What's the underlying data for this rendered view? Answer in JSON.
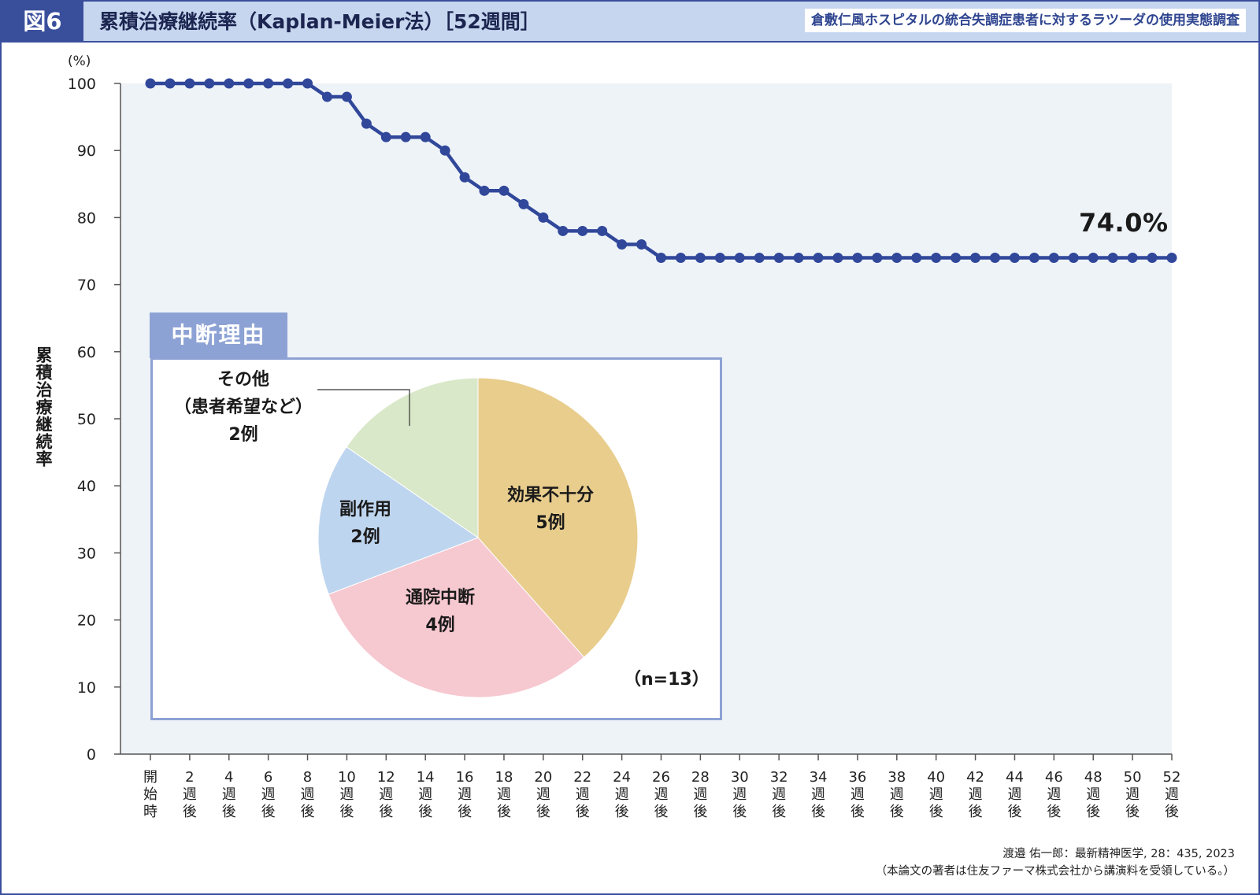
{
  "header": {
    "figure_label": "図6",
    "title": "累積治療継続率（Kaplan-Meier法）［52週間］",
    "subtitle": "倉敷仁風ホスピタルの統合失調症患者に対するラツーダの使用実態調査"
  },
  "colors": {
    "frame": "#3a4f9c",
    "header_bg": "#c6d6ef",
    "plot_bg": "#eef3f8",
    "line": "#30479a",
    "pie_frame": "#8da2d4"
  },
  "chart_data": [
    {
      "type": "line",
      "ylabel": "累積治療継続率",
      "yunit": "(%)",
      "ylim": [
        0,
        100
      ],
      "yticks": [
        0,
        10,
        20,
        30,
        40,
        50,
        60,
        70,
        80,
        90,
        100
      ],
      "x": [
        0,
        1,
        2,
        3,
        4,
        5,
        6,
        7,
        8,
        9,
        10,
        11,
        12,
        13,
        14,
        15,
        16,
        17,
        18,
        19,
        20,
        21,
        22,
        23,
        24,
        25,
        26,
        27,
        28,
        29,
        30,
        31,
        32,
        33,
        34,
        35,
        36,
        37,
        38,
        39,
        40,
        41,
        42,
        43,
        44,
        45,
        46,
        47,
        48,
        49,
        50,
        51,
        52
      ],
      "xticks": [
        {
          "week": 0,
          "label": "開始時"
        },
        {
          "week": 2,
          "label": "2週後"
        },
        {
          "week": 4,
          "label": "4週後"
        },
        {
          "week": 6,
          "label": "6週後"
        },
        {
          "week": 8,
          "label": "8週後"
        },
        {
          "week": 10,
          "label": "10週後"
        },
        {
          "week": 12,
          "label": "12週後"
        },
        {
          "week": 14,
          "label": "14週後"
        },
        {
          "week": 16,
          "label": "16週後"
        },
        {
          "week": 18,
          "label": "18週後"
        },
        {
          "week": 20,
          "label": "20週後"
        },
        {
          "week": 22,
          "label": "22週後"
        },
        {
          "week": 24,
          "label": "24週後"
        },
        {
          "week": 26,
          "label": "26週後"
        },
        {
          "week": 28,
          "label": "28週後"
        },
        {
          "week": 30,
          "label": "30週後"
        },
        {
          "week": 32,
          "label": "32週後"
        },
        {
          "week": 34,
          "label": "34週後"
        },
        {
          "week": 36,
          "label": "36週後"
        },
        {
          "week": 38,
          "label": "38週後"
        },
        {
          "week": 40,
          "label": "40週後"
        },
        {
          "week": 42,
          "label": "42週後"
        },
        {
          "week": 44,
          "label": "44週後"
        },
        {
          "week": 46,
          "label": "46週後"
        },
        {
          "week": 48,
          "label": "48週後"
        },
        {
          "week": 50,
          "label": "50週後"
        },
        {
          "week": 52,
          "label": "52週後"
        }
      ],
      "series": [
        {
          "values": [
            100,
            100,
            100,
            100,
            100,
            100,
            100,
            100,
            100,
            98,
            98,
            94,
            92,
            92,
            92,
            90,
            86,
            84,
            84,
            82,
            80,
            78,
            78,
            78,
            76,
            76,
            74,
            74,
            74,
            74,
            74,
            74,
            74,
            74,
            74,
            74,
            74,
            74,
            74,
            74,
            74,
            74,
            74,
            74,
            74,
            74,
            74,
            74,
            74,
            74,
            74,
            74,
            74
          ]
        }
      ],
      "annotation": "74.0%",
      "grid": false
    },
    {
      "type": "pie",
      "title": "中断理由",
      "n_label": "（n=13）",
      "slices": [
        {
          "label": "効果不十分",
          "count_label": "5例",
          "value": 5,
          "color": "#e8cd8d"
        },
        {
          "label": "通院中断",
          "count_label": "4例",
          "value": 4,
          "color": "#f6c8d0"
        },
        {
          "label": "副作用",
          "count_label": "2例",
          "value": 2,
          "color": "#bed5ef"
        },
        {
          "label": "その他",
          "sublabel": "（患者希望など）",
          "count_label": "2例",
          "value": 2,
          "color": "#d9e8c8"
        }
      ]
    }
  ],
  "source": {
    "line1": "渡邉 佑一郎：最新精神医学, 28：435, 2023",
    "line2": "（本論文の著者は住友ファーマ株式会社から講演料を受領している。）"
  }
}
